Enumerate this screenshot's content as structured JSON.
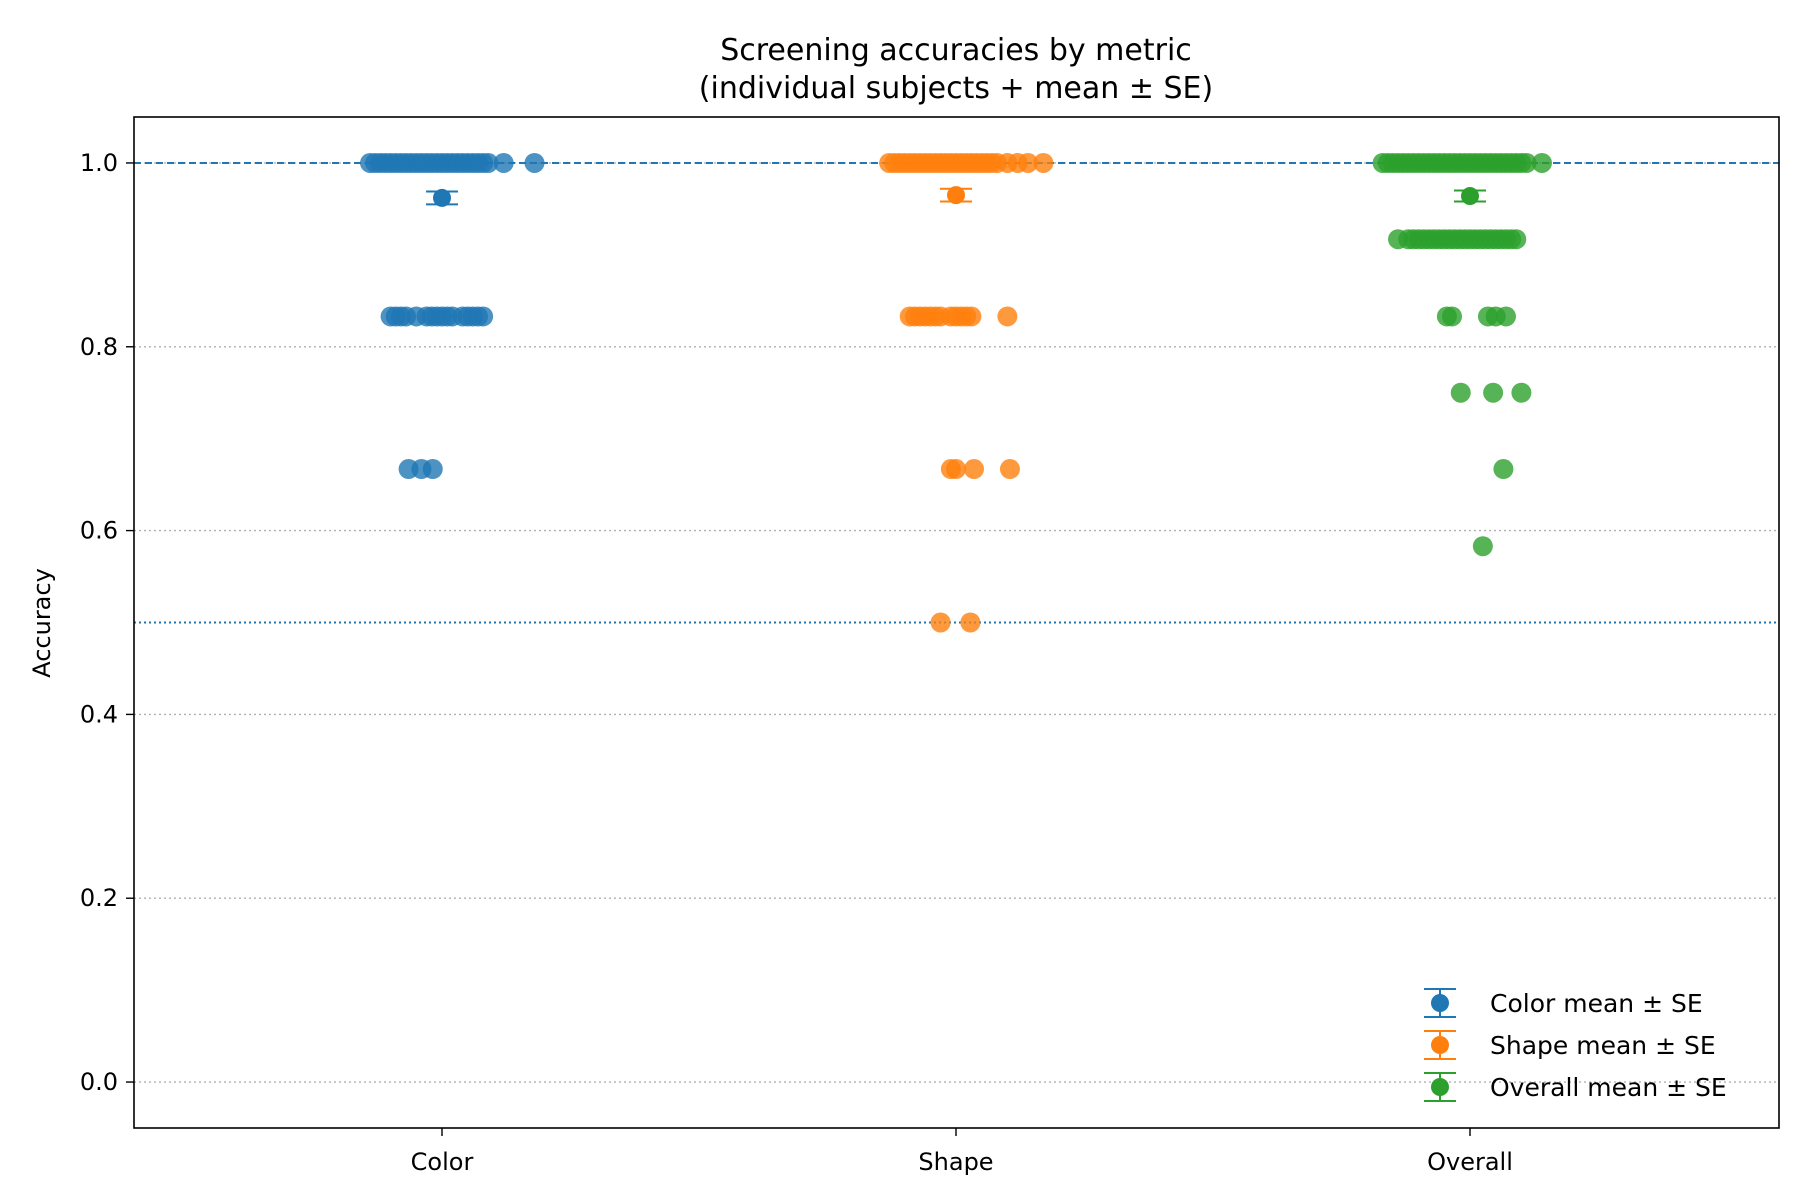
{
  "chart_data": {
    "type": "scatter",
    "title": "Screening accuracies by metric",
    "subtitle": "(individual subjects + mean ± SE)",
    "xlabel": "",
    "ylabel": "Accuracy",
    "categories": [
      "Color",
      "Shape",
      "Overall"
    ],
    "ylim": [
      -0.05,
      1.05
    ],
    "yticks": [
      0.0,
      0.2,
      0.4,
      0.6,
      0.8,
      1.0
    ],
    "ytick_labels": [
      "0.0",
      "0.2",
      "0.4",
      "0.6",
      "0.8",
      "1.0"
    ],
    "grid": "horizontal dotted",
    "reference_lines": [
      {
        "y": 1.0,
        "style": "dashed",
        "color": "#1f77b4"
      },
      {
        "y": 0.5,
        "style": "dotted",
        "color": "#1f77b4"
      }
    ],
    "legend_position": "lower-right",
    "series": [
      {
        "name": "Color mean ± SE",
        "color": "#1f77b4",
        "mean": 0.962,
        "se": 0.007,
        "points": [
          {
            "y": 1.0,
            "offsets": [
              -0.14,
              -0.13,
              -0.12,
              -0.11,
              -0.1,
              -0.09,
              -0.08,
              -0.07,
              -0.06,
              -0.05,
              -0.04,
              -0.03,
              -0.02,
              -0.01,
              0.0,
              0.01,
              0.02,
              0.03,
              0.04,
              0.05,
              0.06,
              0.07,
              0.08,
              0.09,
              0.12,
              0.18
            ]
          },
          {
            "y": 0.833,
            "offsets": [
              -0.1,
              -0.09,
              -0.08,
              -0.07,
              -0.05,
              -0.03,
              -0.02,
              -0.01,
              0.0,
              0.01,
              0.02,
              0.04,
              0.05,
              0.06,
              0.07,
              0.08
            ]
          },
          {
            "y": 0.667,
            "offsets": [
              -0.065,
              -0.04,
              -0.018
            ]
          }
        ]
      },
      {
        "name": "Shape mean ± SE",
        "color": "#ff7f0e",
        "mean": 0.965,
        "se": 0.007,
        "points": [
          {
            "y": 1.0,
            "offsets": [
              -0.13,
              -0.12,
              -0.11,
              -0.1,
              -0.09,
              -0.08,
              -0.07,
              -0.06,
              -0.05,
              -0.04,
              -0.03,
              -0.02,
              -0.01,
              0.0,
              0.01,
              0.02,
              0.03,
              0.04,
              0.05,
              0.06,
              0.07,
              0.08,
              0.1,
              0.12,
              0.14,
              0.17
            ]
          },
          {
            "y": 0.833,
            "offsets": [
              -0.09,
              -0.08,
              -0.07,
              -0.06,
              -0.05,
              -0.04,
              -0.03,
              -0.01,
              0.0,
              0.01,
              0.02,
              0.03,
              0.1
            ]
          },
          {
            "y": 0.667,
            "offsets": [
              -0.01,
              0.0,
              0.035,
              0.105
            ]
          },
          {
            "y": 0.5,
            "offsets": [
              -0.03,
              0.028
            ]
          }
        ]
      },
      {
        "name": "Overall mean ± SE",
        "color": "#2ca02c",
        "mean": 0.964,
        "se": 0.006,
        "points": [
          {
            "y": 1.0,
            "offsets": [
              -0.17,
              -0.16,
              -0.15,
              -0.14,
              -0.13,
              -0.12,
              -0.11,
              -0.1,
              -0.09,
              -0.08,
              -0.07,
              -0.06,
              -0.05,
              -0.04,
              -0.03,
              -0.02,
              -0.01,
              0.0,
              0.01,
              0.02,
              0.03,
              0.04,
              0.05,
              0.06,
              0.07,
              0.08,
              0.09,
              0.1,
              0.11,
              0.14
            ]
          },
          {
            "y": 0.917,
            "offsets": [
              -0.14,
              -0.12,
              -0.11,
              -0.1,
              -0.09,
              -0.08,
              -0.07,
              -0.06,
              -0.05,
              -0.04,
              -0.03,
              -0.02,
              -0.01,
              0.0,
              0.01,
              0.02,
              0.03,
              0.04,
              0.05,
              0.06,
              0.07,
              0.08,
              0.09
            ]
          },
          {
            "y": 0.833,
            "offsets": [
              -0.045,
              -0.035,
              0.035,
              0.05,
              0.07
            ]
          },
          {
            "y": 0.75,
            "offsets": [
              -0.018,
              0.045,
              0.1
            ]
          },
          {
            "y": 0.667,
            "offsets": [
              0.065
            ]
          },
          {
            "y": 0.583,
            "offsets": [
              0.025
            ]
          }
        ]
      }
    ]
  }
}
